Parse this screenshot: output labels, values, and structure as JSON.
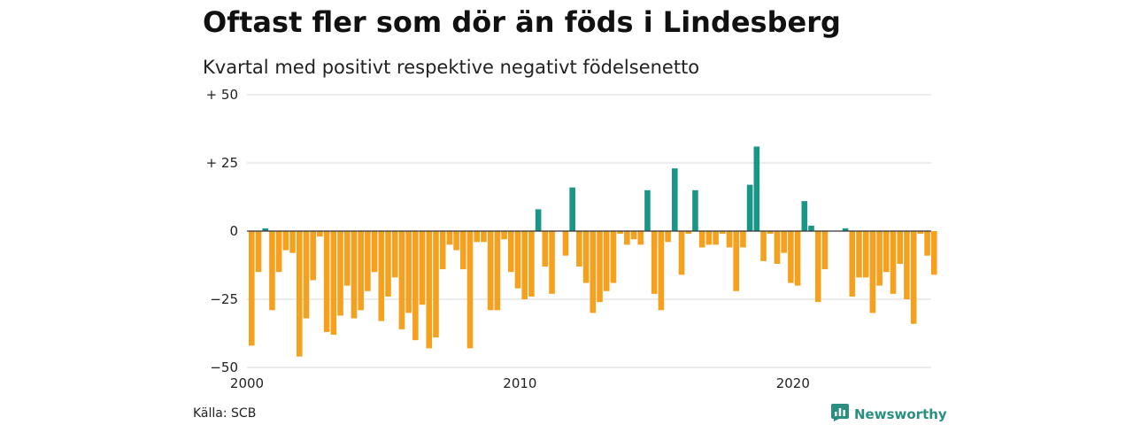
{
  "header": {
    "title": "Oftast fler som dör än föds i Lindesberg",
    "subtitle": "Kvartal med positivt respektive negativt födelsenetto"
  },
  "footer": {
    "source": "Källa: SCB",
    "brand": "Newsworthy"
  },
  "colors": {
    "positive": "#1a9687",
    "negative": "#f5a11e",
    "grid": "#d8d8d8",
    "zero_line": "#333333"
  },
  "chart_data": {
    "type": "bar",
    "title": "Oftast fler som dör än föds i Lindesberg",
    "subtitle": "Kvartal med positivt respektive negativt födelsenetto",
    "xlabel": "",
    "ylabel": "",
    "ylim": [
      -50,
      50
    ],
    "yticks": [
      {
        "value": 50,
        "label": "+ 50"
      },
      {
        "value": 25,
        "label": "+ 25"
      },
      {
        "value": 0,
        "label": "0"
      },
      {
        "value": -25,
        "label": "−25"
      },
      {
        "value": -50,
        "label": "−50"
      }
    ],
    "xticks": [
      {
        "index": 0,
        "label": "2000"
      },
      {
        "index": 40,
        "label": "2010"
      },
      {
        "index": 80,
        "label": "2020"
      }
    ],
    "start_year": 2000,
    "grid": true,
    "values": [
      -42,
      -15,
      1,
      -29,
      -15,
      -7,
      -8,
      -46,
      -32,
      -18,
      -2,
      -37,
      -38,
      -31,
      -20,
      -32,
      -29,
      -22,
      -15,
      -33,
      -24,
      -17,
      -36,
      -30,
      -40,
      -27,
      -43,
      -39,
      -14,
      -5,
      -7,
      -14,
      -43,
      -4,
      -4,
      -29,
      -29,
      -3,
      -15,
      -21,
      -25,
      -24,
      8,
      -13,
      -23,
      0,
      -9,
      16,
      -13,
      -19,
      -30,
      -26,
      -22,
      -19,
      -1,
      -5,
      -3,
      -5,
      15,
      -23,
      -29,
      -4,
      23,
      -16,
      -1,
      15,
      -6,
      -5,
      -5,
      -1,
      -6,
      -22,
      -6,
      17,
      31,
      -11,
      -1,
      -12,
      -8,
      -19,
      -20,
      11,
      2,
      -26,
      -14,
      0,
      0,
      1,
      -24,
      -17,
      -17,
      -30,
      -20,
      -15,
      -23,
      -12,
      -25,
      -34,
      -1,
      -9,
      -16
    ]
  }
}
